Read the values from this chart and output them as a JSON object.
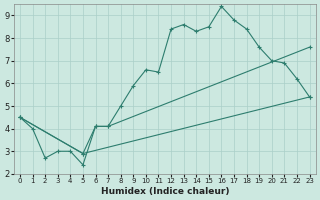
{
  "xlabel": "Humidex (Indice chaleur)",
  "bg_color": "#cce8e0",
  "line_color": "#2d7d6e",
  "grid_color": "#aacfc8",
  "xlim": [
    -0.5,
    23.5
  ],
  "ylim": [
    2,
    9.5
  ],
  "xticks": [
    0,
    1,
    2,
    3,
    4,
    5,
    6,
    7,
    8,
    9,
    10,
    11,
    12,
    13,
    14,
    15,
    16,
    17,
    18,
    19,
    20,
    21,
    22,
    23
  ],
  "yticks": [
    2,
    3,
    4,
    5,
    6,
    7,
    8,
    9
  ],
  "line1_x": [
    0,
    1,
    2,
    3,
    4,
    5,
    6,
    7,
    8,
    9,
    10,
    11,
    12,
    13,
    14,
    15,
    16,
    17,
    18,
    19,
    20,
    21,
    22,
    23
  ],
  "line1_y": [
    4.5,
    4.0,
    2.7,
    3.0,
    3.0,
    2.4,
    4.1,
    4.1,
    5.0,
    5.9,
    6.6,
    6.5,
    8.4,
    8.6,
    8.3,
    8.5,
    9.4,
    8.8,
    8.4,
    7.6,
    7.0,
    6.9,
    6.2,
    5.4
  ],
  "line2_x": [
    0,
    5,
    6,
    7,
    23
  ],
  "line2_y": [
    4.5,
    2.9,
    4.1,
    4.1,
    7.6
  ],
  "line3_x": [
    0,
    5,
    23
  ],
  "line3_y": [
    4.5,
    2.9,
    5.4
  ]
}
